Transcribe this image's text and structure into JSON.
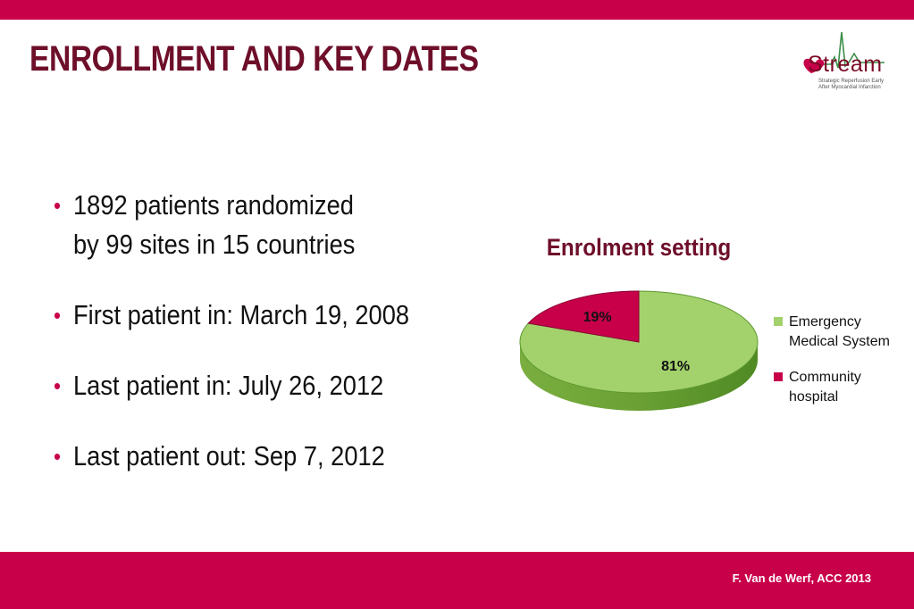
{
  "slide": {
    "title": "ENROLLMENT AND KEY DATES",
    "footer": "F. Van de Werf, ACC 2013",
    "colors": {
      "accent": "#c8004a",
      "title": "#6e0f2a"
    }
  },
  "logo": {
    "word": "Stream",
    "tagline_1": "Strategic Reperfusion Early",
    "tagline_2": "After Myocardial Infarction"
  },
  "bullets": [
    {
      "lines": [
        "1892 patients randomized",
        "by 99 sites in 15 countries"
      ]
    },
    {
      "lines": [
        "First patient in: March 19, 2008"
      ]
    },
    {
      "lines": [
        "Last patient in: July 26, 2012"
      ]
    },
    {
      "lines": [
        "Last patient out: Sep 7, 2012"
      ]
    }
  ],
  "chart_data": {
    "type": "pie",
    "title": "Enrolment setting",
    "categories": [
      "Emergency\nMedical System",
      "Community\nhospital"
    ],
    "values": [
      81,
      19
    ],
    "labels": [
      "81%",
      "19%"
    ],
    "colors": [
      "#a3d16c",
      "#c8004a"
    ],
    "legend": "right"
  }
}
